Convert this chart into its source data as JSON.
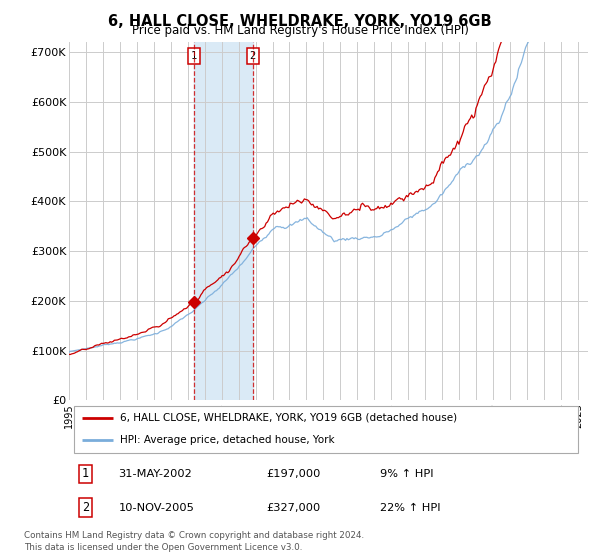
{
  "title": "6, HALL CLOSE, WHELDRAKE, YORK, YO19 6GB",
  "subtitle": "Price paid vs. HM Land Registry's House Price Index (HPI)",
  "legend_line1": "6, HALL CLOSE, WHELDRAKE, YORK, YO19 6GB (detached house)",
  "legend_line2": "HPI: Average price, detached house, York",
  "transaction1_date": "31-MAY-2002",
  "transaction1_price": 197000,
  "transaction1_hpi": "9% ↑ HPI",
  "transaction1_label": "1",
  "transaction2_date": "10-NOV-2005",
  "transaction2_price": 327000,
  "transaction2_hpi": "22% ↑ HPI",
  "transaction2_label": "2",
  "footer": "Contains HM Land Registry data © Crown copyright and database right 2024.\nThis data is licensed under the Open Government Licence v3.0.",
  "red_color": "#cc0000",
  "blue_color": "#7aaddb",
  "bg_color": "#ffffff",
  "grid_color": "#cccccc",
  "highlight_color": "#daeaf6",
  "ylim": [
    0,
    720000
  ],
  "ytick_vals": [
    0,
    100000,
    200000,
    300000,
    400000,
    500000,
    600000,
    700000
  ],
  "ytick_labels": [
    "£0",
    "£100K",
    "£200K",
    "£300K",
    "£400K",
    "£500K",
    "£600K",
    "£700K"
  ],
  "xlim_start": 1995.0,
  "xlim_end": 2025.6,
  "t1_year": 2002.37,
  "t2_year": 2005.84
}
